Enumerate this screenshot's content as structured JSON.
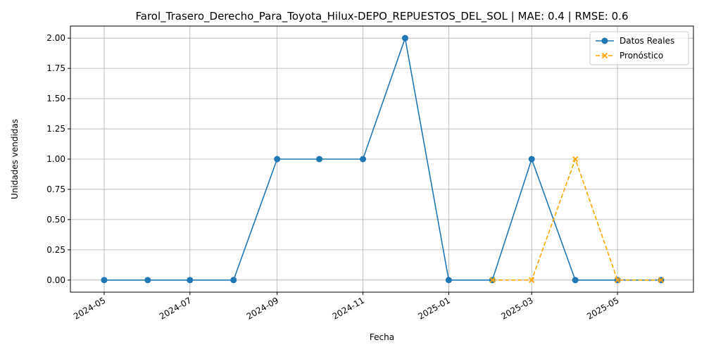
{
  "chart_data": {
    "type": "line",
    "title": "Farol_Trasero_Derecho_Para_Toyota_Hilux-DEPO_REPUESTOS_DEL_SOL | MAE: 0.4 | RMSE: 0.6",
    "xlabel": "Fecha",
    "ylabel": "Unidades vendidas",
    "xlim": [
      "2024-04-07",
      "2025-06-24"
    ],
    "ylim": [
      -0.1,
      2.1
    ],
    "x_ticks": [
      "2024-05-01",
      "2024-07-01",
      "2024-09-01",
      "2024-11-01",
      "2025-01-01",
      "2025-03-01",
      "2025-05-01"
    ],
    "x_tick_labels": [
      "2024-05",
      "2024-07",
      "2024-09",
      "2024-11",
      "2025-01",
      "2025-03",
      "2025-05"
    ],
    "y_ticks": [
      0.0,
      0.25,
      0.5,
      0.75,
      1.0,
      1.25,
      1.5,
      1.75,
      2.0
    ],
    "y_tick_labels": [
      "0.00",
      "0.25",
      "0.50",
      "0.75",
      "1.00",
      "1.25",
      "1.50",
      "1.75",
      "2.00"
    ],
    "grid": true,
    "legend_position": "top-right",
    "series": [
      {
        "name": "Datos Reales",
        "color": "#1f77b4",
        "line_style": "solid",
        "marker": "circle",
        "x": [
          "2024-05-01",
          "2024-06-01",
          "2024-07-01",
          "2024-08-01",
          "2024-09-01",
          "2024-10-01",
          "2024-11-01",
          "2024-12-01",
          "2025-01-01",
          "2025-02-01",
          "2025-03-01",
          "2025-04-01",
          "2025-05-01",
          "2025-06-01"
        ],
        "y": [
          0,
          0,
          0,
          0,
          1,
          1,
          1,
          2,
          0,
          0,
          1,
          0,
          0,
          0
        ]
      },
      {
        "name": "Pronóstico",
        "color": "#ffa500",
        "line_style": "dashed",
        "marker": "x",
        "x": [
          "2025-02-01",
          "2025-03-01",
          "2025-04-01",
          "2025-05-01",
          "2025-06-01"
        ],
        "y": [
          0,
          0,
          1,
          0,
          0
        ]
      }
    ]
  }
}
